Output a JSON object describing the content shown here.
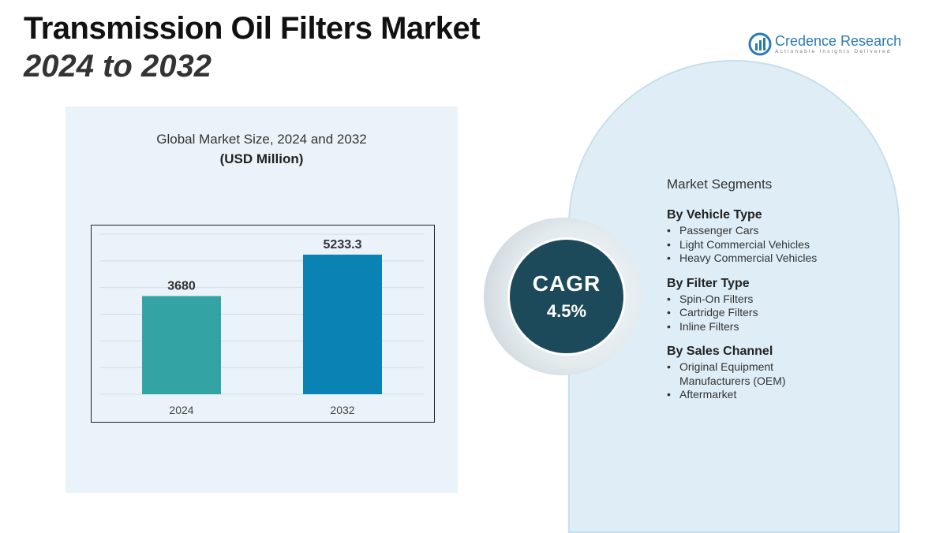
{
  "header": {
    "title": "Transmission Oil Filters Market",
    "subtitle": "2024 to 2032"
  },
  "logo": {
    "name": "Credence Research",
    "tagline": "Actionable Insights Delivered",
    "icon": "bar-chart-logo-icon"
  },
  "colors": {
    "bar_2024": "#34a3a3",
    "bar_2032": "#0a82b4",
    "cagr_circle": "#1d4a5a",
    "panel_bg": "#eaf3f9",
    "segment_bg": "#dfeef6"
  },
  "chart_data": {
    "type": "bar",
    "title": "Global Market Size, 2024 and 2032",
    "unit_label": "(USD Million)",
    "categories": [
      "2024",
      "2032"
    ],
    "values": [
      3680,
      5233.3
    ],
    "value_labels": [
      "3680",
      "5233.3"
    ],
    "xlabel": "",
    "ylabel": "",
    "grid": true,
    "legend": "none"
  },
  "cagr": {
    "label": "CAGR",
    "value": "4.5%"
  },
  "segments": {
    "heading": "Market Segments",
    "groups": [
      {
        "title": "By Vehicle Type",
        "items": [
          "Passenger Cars",
          "Light Commercial Vehicles",
          "Heavy Commercial Vehicles"
        ]
      },
      {
        "title": "By Filter Type",
        "items": [
          "Spin-On Filters",
          "Cartridge Filters",
          "Inline Filters"
        ]
      },
      {
        "title": "By Sales Channel",
        "items": [
          "Original Equipment Manufacturers (OEM)",
          "Aftermarket"
        ]
      }
    ]
  }
}
